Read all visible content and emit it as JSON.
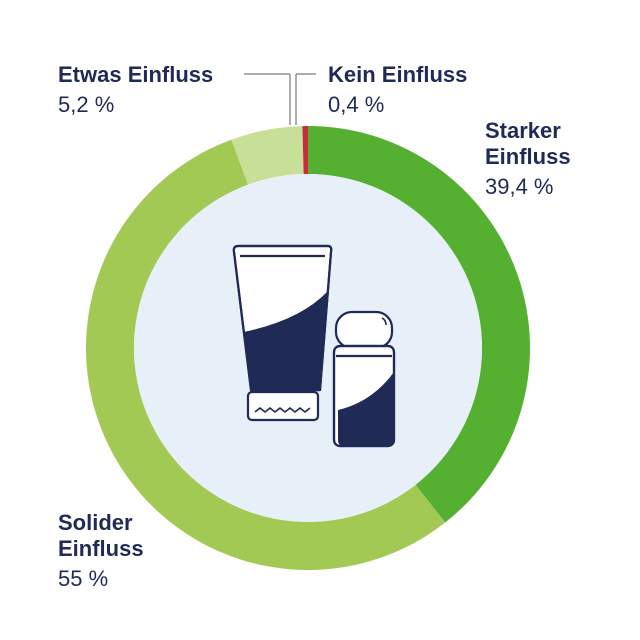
{
  "chart_data": {
    "type": "pie",
    "style": "donut",
    "slices": [
      {
        "label": "Starker Einfluss",
        "value": 39.4,
        "value_text": "39,4 %",
        "color": "#55b032"
      },
      {
        "label": "Solider Einfluss",
        "value": 55.0,
        "value_text": "55 %",
        "color": "#a3c955"
      },
      {
        "label": "Etwas Einfluss",
        "value": 5.2,
        "value_text": "5,2 %",
        "color": "#c8df98"
      },
      {
        "label": "Kein Einfluss",
        "value": 0.4,
        "value_text": "0,4 %",
        "color": "#c92a39"
      }
    ],
    "label_lines": {
      "starker": [
        "Starker",
        "Einfluss"
      ],
      "solider": [
        "Solider",
        "Einfluss"
      ]
    },
    "center_icon": "cosmetic-tube-and-bottle-icon",
    "colors": {
      "inner_fill": "#e7eff9",
      "icon_dark": "#1f2a57",
      "text": "#1f2a57"
    }
  }
}
